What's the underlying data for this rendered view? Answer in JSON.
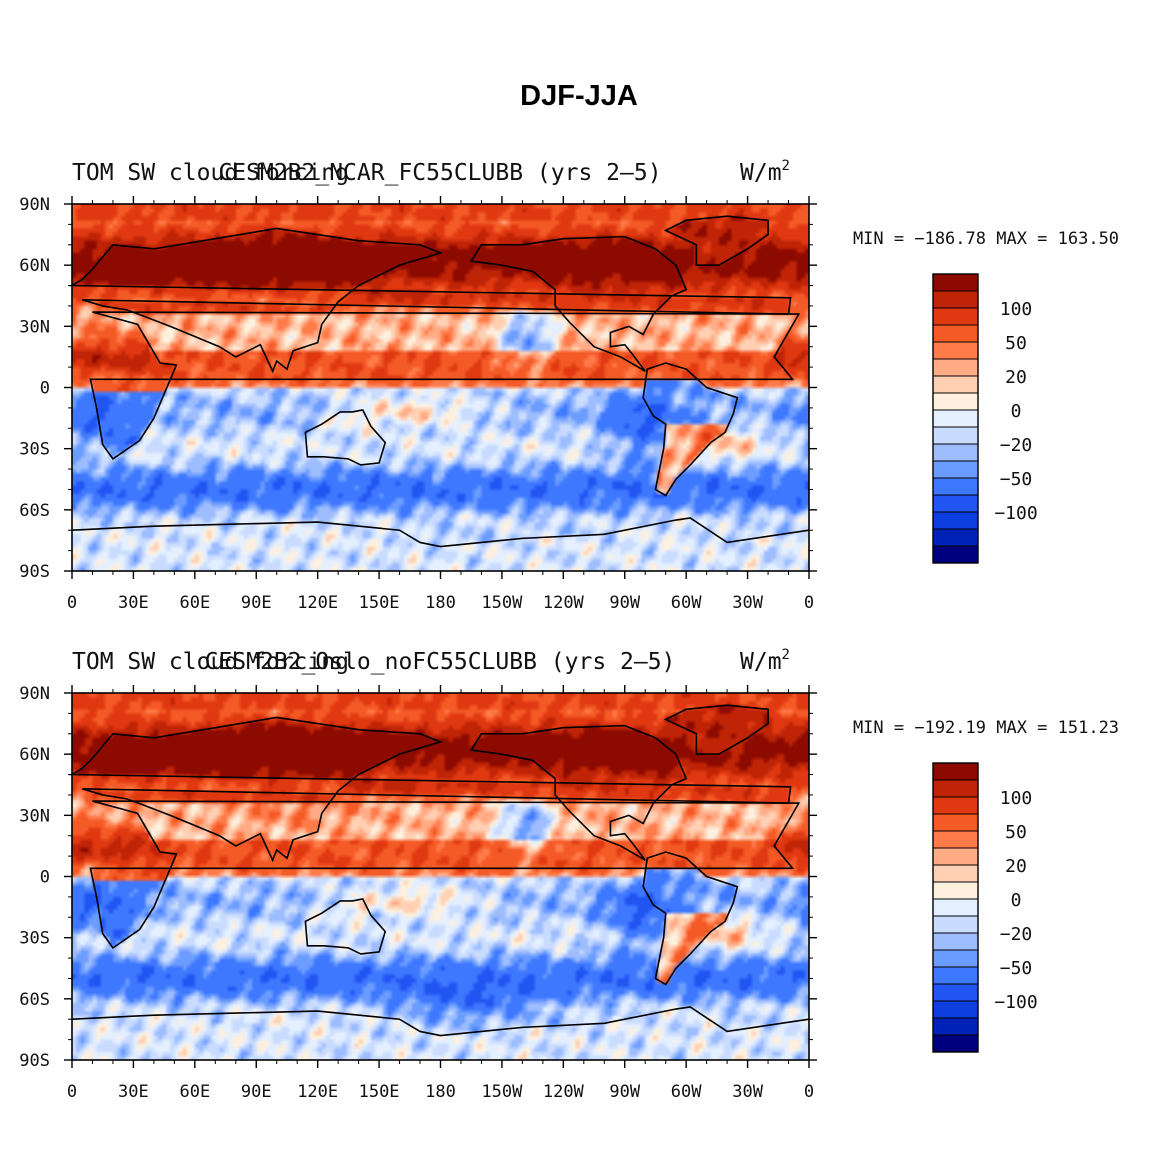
{
  "title": "DJF-JJA",
  "colormap": [
    "#00007f",
    "#0022b8",
    "#0d3ee0",
    "#2155f2",
    "#3e78ff",
    "#6b9cff",
    "#9ebdff",
    "#c9dcff",
    "#e4efff",
    "#fdf0df",
    "#ffd0b3",
    "#ffab86",
    "#ff7b4a",
    "#f45a26",
    "#e03912",
    "#bf2406",
    "#8c0a00"
  ],
  "colorbar": {
    "labels": [
      "100",
      "50",
      "20",
      "0",
      "−20",
      "−50",
      "−100"
    ]
  },
  "panels": [
    {
      "left_title": "TOM SW cloud forcing",
      "center_title": "CESM2B2_NCAR_FC55CLUBB (yrs 2–5)",
      "units_text": "W/m",
      "units_sup": "2",
      "min_max": "MIN = −186.78 MAX = 163.50"
    },
    {
      "left_title": "TOM SW cloud forcing",
      "center_title": "CESM2B2_Oslo_noFC55CLUBB (yrs 2–5)",
      "units_text": "W/m",
      "units_sup": "2",
      "min_max": "MIN = −192.19 MAX = 151.23"
    }
  ],
  "chart_data": [
    {
      "type": "heatmap",
      "title": "CESM2B2_NCAR_FC55CLUBB (yrs 2–5)",
      "variable": "TOM SW cloud forcing",
      "units": "W/m2",
      "min": -186.78,
      "max": 163.5,
      "x_ticks": [
        "0",
        "30E",
        "60E",
        "90E",
        "120E",
        "150E",
        "180",
        "150W",
        "120W",
        "90W",
        "60W",
        "30W",
        "0"
      ],
      "y_ticks": [
        "90N",
        "60N",
        "30N",
        "0",
        "30S",
        "60S",
        "90S"
      ],
      "xlim": [
        0,
        360
      ],
      "ylim": [
        -90,
        90
      ],
      "contour_levels": [
        -150,
        -125,
        -100,
        -75,
        -50,
        -40,
        -30,
        -20,
        -10,
        0,
        10,
        20,
        30,
        50,
        75,
        100,
        125
      ]
    },
    {
      "type": "heatmap",
      "title": "CESM2B2_Oslo_noFC55CLUBB (yrs 2–5)",
      "variable": "TOM SW cloud forcing",
      "units": "W/m2",
      "min": -192.19,
      "max": 151.23,
      "x_ticks": [
        "0",
        "30E",
        "60E",
        "90E",
        "120E",
        "150E",
        "180",
        "150W",
        "120W",
        "90W",
        "60W",
        "30W",
        "0"
      ],
      "y_ticks": [
        "90N",
        "60N",
        "30N",
        "0",
        "30S",
        "60S",
        "90S"
      ],
      "xlim": [
        0,
        360
      ],
      "ylim": [
        -90,
        90
      ],
      "contour_levels": [
        -150,
        -125,
        -100,
        -75,
        -50,
        -40,
        -30,
        -20,
        -10,
        0,
        10,
        20,
        30,
        50,
        75,
        100,
        125
      ]
    }
  ]
}
